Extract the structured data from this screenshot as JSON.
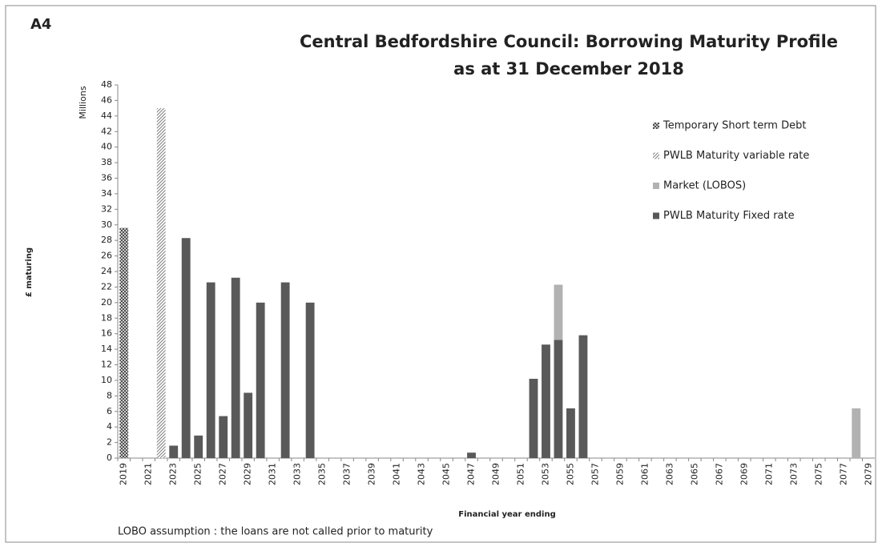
{
  "chart_data": {
    "type": "stacked-bar",
    "label": "A4",
    "title": "Central Bedfordshire Council: Borrowing Maturity Profile",
    "subtitle": "as at 31  December 2018",
    "y_unit_label": "Millions",
    "y_label": "£ maturing",
    "x_label": "Financial year ending",
    "footnote": "LOBO assumption : the loans are not called prior to maturity",
    "categories": [
      "2019",
      null,
      "2021",
      null,
      "2023",
      null,
      "2025",
      null,
      "2027",
      null,
      "2029",
      null,
      "2031",
      null,
      "2033",
      null,
      "2035",
      null,
      "2037",
      null,
      "2039",
      null,
      "2041",
      null,
      "2043",
      null,
      "2045",
      null,
      "2047",
      null,
      "2049",
      null,
      "2051",
      null,
      "2053",
      null,
      "2055",
      null,
      "2057",
      null,
      "2059",
      null,
      "2061",
      null,
      "2063",
      null,
      "2065",
      null,
      "2067",
      null,
      "2069",
      null,
      "2071",
      null,
      "2073",
      null,
      "2075",
      null,
      "2077",
      null,
      "2079"
    ],
    "series": [
      {
        "name": "Temporary Short term Debt",
        "color": "#404040",
        "pattern": "crosshatch",
        "values": [
          29.6,
          null,
          null,
          null,
          null,
          null,
          null,
          null,
          null,
          null,
          null,
          null,
          null,
          null,
          null,
          null,
          null,
          null,
          null,
          null,
          null,
          null,
          null,
          null,
          null,
          null,
          null,
          null,
          null,
          null,
          null,
          null,
          null,
          null,
          null,
          null,
          null,
          null,
          null,
          null,
          null,
          null,
          null,
          null,
          null,
          null,
          null,
          null,
          null,
          null,
          null,
          null,
          null,
          null,
          null,
          null,
          null,
          null,
          null,
          null,
          null
        ]
      },
      {
        "name": "PWLB Maturity variable rate",
        "color": "#7f7f7f",
        "pattern": "diagonal",
        "values": [
          null,
          null,
          null,
          45,
          null,
          null,
          null,
          null,
          null,
          null,
          null,
          null,
          null,
          null,
          null,
          null,
          null,
          null,
          null,
          null,
          null,
          null,
          null,
          null,
          null,
          null,
          null,
          null,
          null,
          null,
          null,
          null,
          null,
          null,
          null,
          null,
          null,
          null,
          null,
          null,
          null,
          null,
          null,
          null,
          null,
          null,
          null,
          null,
          null,
          null,
          null,
          null,
          null,
          null,
          null,
          null,
          null,
          null,
          null,
          null,
          null
        ]
      },
      {
        "name": "Market (LOBOS)",
        "color": "#b2b2b2",
        "pattern": "solid",
        "values": [
          null,
          null,
          null,
          null,
          null,
          null,
          null,
          null,
          null,
          null,
          null,
          null,
          null,
          null,
          null,
          null,
          null,
          null,
          null,
          null,
          null,
          null,
          null,
          null,
          null,
          null,
          null,
          null,
          null,
          null,
          null,
          null,
          null,
          null,
          null,
          7.1,
          null,
          null,
          null,
          null,
          null,
          null,
          null,
          null,
          null,
          null,
          null,
          null,
          null,
          null,
          null,
          null,
          null,
          null,
          null,
          null,
          null,
          null,
          null,
          6.4,
          null
        ]
      },
      {
        "name": "PWLB Maturity Fixed rate",
        "color": "#595959",
        "pattern": "solid",
        "values": [
          null,
          null,
          null,
          null,
          1.6,
          28.3,
          2.9,
          22.6,
          5.4,
          23.2,
          8.4,
          20,
          null,
          22.6,
          null,
          20,
          null,
          null,
          null,
          null,
          null,
          null,
          null,
          null,
          null,
          null,
          null,
          null,
          0.7,
          null,
          null,
          null,
          null,
          10.2,
          14.6,
          15.2,
          6.4,
          15.8,
          null,
          null,
          null,
          null,
          null,
          null,
          null,
          null,
          null,
          null,
          null,
          null,
          null,
          null,
          null,
          null,
          null,
          null,
          null,
          null,
          null,
          null,
          null
        ]
      }
    ],
    "ylim": [
      0,
      48
    ],
    "yticks": [
      0,
      2,
      4,
      6,
      8,
      10,
      12,
      14,
      16,
      18,
      20,
      22,
      24,
      26,
      28,
      30,
      32,
      34,
      36,
      38,
      40,
      42,
      44,
      46,
      48
    ],
    "grid": false,
    "legend": "right"
  }
}
